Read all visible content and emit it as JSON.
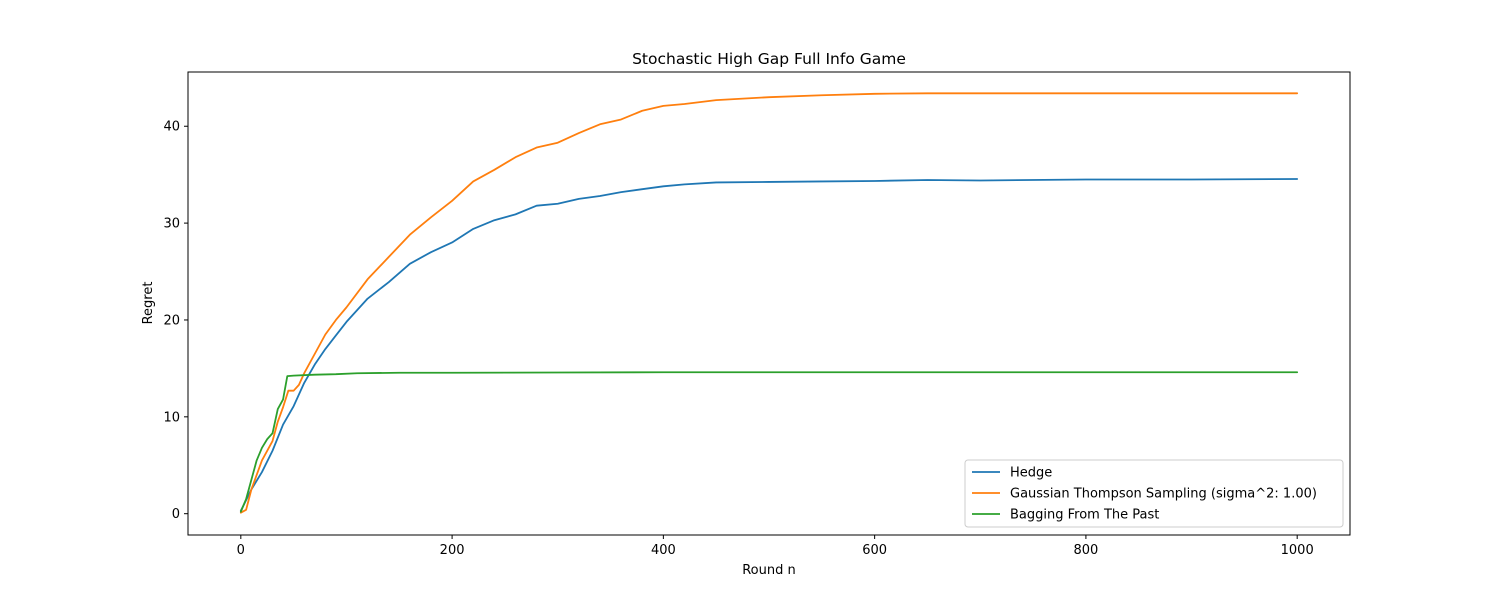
{
  "chart_data": {
    "type": "line",
    "title": "Stochastic High Gap Full Info Game",
    "xlabel": "Round n",
    "ylabel": "Regret",
    "xlim": [
      -50,
      1050
    ],
    "ylim": [
      -2.2,
      45.6
    ],
    "xticks": [
      0,
      200,
      400,
      600,
      800,
      1000
    ],
    "yticks": [
      0,
      10,
      20,
      30,
      40
    ],
    "grid": false,
    "legend_position": "lower-right",
    "series": [
      {
        "name": "Hedge",
        "color": "#1f77b4",
        "points": [
          [
            0,
            0.3
          ],
          [
            10,
            2.5
          ],
          [
            20,
            4.3
          ],
          [
            30,
            6.5
          ],
          [
            40,
            9.2
          ],
          [
            50,
            11.1
          ],
          [
            60,
            13.5
          ],
          [
            70,
            15.4
          ],
          [
            80,
            17.0
          ],
          [
            90,
            18.4
          ],
          [
            100,
            19.8
          ],
          [
            120,
            22.2
          ],
          [
            140,
            23.9
          ],
          [
            160,
            25.8
          ],
          [
            180,
            27.0
          ],
          [
            200,
            28.0
          ],
          [
            220,
            29.4
          ],
          [
            240,
            30.3
          ],
          [
            260,
            30.9
          ],
          [
            280,
            31.8
          ],
          [
            300,
            32.0
          ],
          [
            320,
            32.5
          ],
          [
            340,
            32.8
          ],
          [
            360,
            33.2
          ],
          [
            380,
            33.5
          ],
          [
            400,
            33.8
          ],
          [
            420,
            34.0
          ],
          [
            450,
            34.2
          ],
          [
            500,
            34.25
          ],
          [
            550,
            34.3
          ],
          [
            600,
            34.35
          ],
          [
            650,
            34.45
          ],
          [
            700,
            34.4
          ],
          [
            800,
            34.5
          ],
          [
            900,
            34.5
          ],
          [
            1000,
            34.55
          ]
        ]
      },
      {
        "name": "Gaussian Thompson Sampling (sigma^2: 1.00)",
        "color": "#ff7f0e",
        "points": [
          [
            0,
            0.1
          ],
          [
            5,
            0.4
          ],
          [
            10,
            2.5
          ],
          [
            20,
            5.5
          ],
          [
            30,
            7.5
          ],
          [
            35,
            9.5
          ],
          [
            40,
            11.0
          ],
          [
            45,
            12.7
          ],
          [
            50,
            12.7
          ],
          [
            55,
            13.3
          ],
          [
            60,
            14.5
          ],
          [
            70,
            16.5
          ],
          [
            80,
            18.5
          ],
          [
            90,
            20.0
          ],
          [
            100,
            21.3
          ],
          [
            120,
            24.2
          ],
          [
            140,
            26.5
          ],
          [
            160,
            28.8
          ],
          [
            180,
            30.6
          ],
          [
            200,
            32.3
          ],
          [
            220,
            34.3
          ],
          [
            240,
            35.5
          ],
          [
            260,
            36.8
          ],
          [
            280,
            37.8
          ],
          [
            300,
            38.3
          ],
          [
            320,
            39.3
          ],
          [
            340,
            40.2
          ],
          [
            360,
            40.7
          ],
          [
            380,
            41.6
          ],
          [
            400,
            42.1
          ],
          [
            420,
            42.3
          ],
          [
            450,
            42.7
          ],
          [
            500,
            43.0
          ],
          [
            550,
            43.2
          ],
          [
            600,
            43.35
          ],
          [
            650,
            43.4
          ],
          [
            700,
            43.4
          ],
          [
            800,
            43.4
          ],
          [
            900,
            43.4
          ],
          [
            1000,
            43.4
          ]
        ]
      },
      {
        "name": "Bagging From The Past",
        "color": "#2ca02c",
        "points": [
          [
            0,
            0.2
          ],
          [
            5,
            1.5
          ],
          [
            10,
            3.5
          ],
          [
            15,
            5.5
          ],
          [
            20,
            6.8
          ],
          [
            25,
            7.7
          ],
          [
            30,
            8.3
          ],
          [
            35,
            10.8
          ],
          [
            40,
            11.8
          ],
          [
            44,
            14.2
          ],
          [
            50,
            14.25
          ],
          [
            70,
            14.35
          ],
          [
            90,
            14.4
          ],
          [
            110,
            14.5
          ],
          [
            150,
            14.55
          ],
          [
            200,
            14.55
          ],
          [
            300,
            14.58
          ],
          [
            400,
            14.6
          ],
          [
            600,
            14.6
          ],
          [
            800,
            14.6
          ],
          [
            1000,
            14.6
          ]
        ]
      }
    ]
  }
}
